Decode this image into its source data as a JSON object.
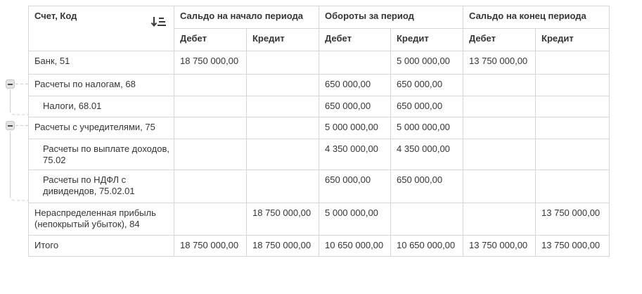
{
  "report": {
    "header": {
      "account_col": "Счет, Код",
      "groups": [
        "Сальдо на начало периода",
        "Обороты за период",
        "Сальдо на конец периода"
      ],
      "subcols": [
        "Дебет",
        "Кредит"
      ]
    },
    "rows": [
      {
        "label": "Банк, 51",
        "level": 0,
        "bold": false,
        "values": [
          "18 750 000,00",
          "",
          "",
          "5 000 000,00",
          "13 750 000,00",
          ""
        ]
      },
      {
        "label": "Расчеты по налогам, 68",
        "level": 0,
        "bold": true,
        "group": true,
        "values": [
          "",
          "",
          "650 000,00",
          "650 000,00",
          "",
          ""
        ]
      },
      {
        "label": "Налоги, 68.01",
        "level": 1,
        "bold": false,
        "values": [
          "",
          "",
          "650 000,00",
          "650 000,00",
          "",
          ""
        ]
      },
      {
        "label": "Расчеты с учредителями, 75",
        "level": 0,
        "bold": true,
        "group": true,
        "values": [
          "",
          "",
          "5 000 000,00",
          "5 000 000,00",
          "",
          ""
        ]
      },
      {
        "label": "Расчеты по выплате доходов, 75.02",
        "level": 1,
        "bold": false,
        "values": [
          "",
          "",
          "4 350 000,00",
          "4 350 000,00",
          "",
          ""
        ]
      },
      {
        "label": "Расчеты по НДФЛ с дивидендов, 75.02.01",
        "level": 1,
        "bold": false,
        "values": [
          "",
          "",
          "650 000,00",
          "650 000,00",
          "",
          ""
        ]
      },
      {
        "label": "Нераспределенная прибыль (непокрытый убыток), 84",
        "level": 0,
        "bold": false,
        "values": [
          "",
          "18 750 000,00",
          "5 000 000,00",
          "",
          "",
          "13 750 000,00"
        ]
      },
      {
        "label": "Итого",
        "level": 0,
        "bold": true,
        "total": true,
        "values": [
          "18 750 000,00",
          "18 750 000,00",
          "10 650 000,00",
          "10 650 000,00",
          "13 750 000,00",
          "13 750 000,00"
        ]
      }
    ],
    "tree": {
      "buttons": [
        {
          "icon": "collapse-minus-icon",
          "state": "expanded",
          "target": "Расчеты по налогам, 68"
        },
        {
          "icon": "collapse-minus-icon",
          "state": "expanded",
          "target": "Расчеты с учредителями, 75"
        }
      ]
    },
    "icons": {
      "sort": "sort-descending-icon"
    },
    "colors": {
      "border": "#d6d6d6",
      "text": "#333538",
      "collapse_button_bg": "#e3e3e3",
      "tree_line": "#cfcfcf"
    }
  }
}
